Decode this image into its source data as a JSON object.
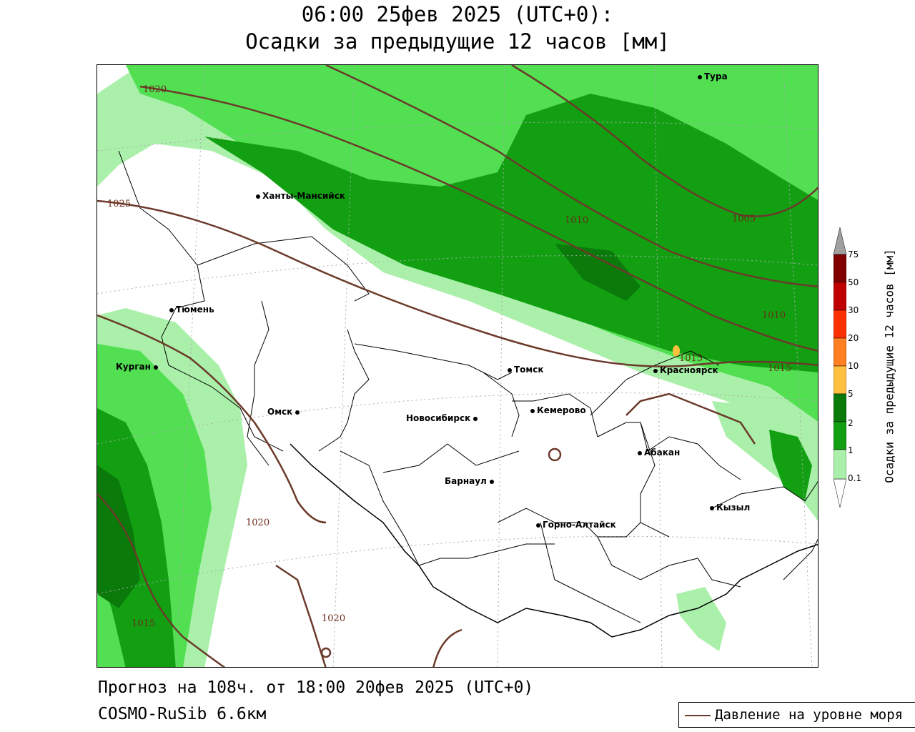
{
  "title": {
    "line1": "06:00 25фев 2025 (UTC+0):",
    "line2": "Осадки за предыдущие 12 часов [мм]"
  },
  "footer": {
    "forecast": "Прогноз на 108ч. от 18:00 20фев 2025 (UTC+0)",
    "model": "COSMO-RuSib 6.6км"
  },
  "legend": {
    "pressure_label": "Давление на уровне моря",
    "line_color": "#6b3a2a"
  },
  "colorbar": {
    "title": "Осадки за предыдущие 12 часов [мм]",
    "ticks": [
      "0.1",
      "1",
      "2",
      "5",
      "10",
      "20",
      "30",
      "50",
      "75"
    ],
    "colors": [
      "#aaf0aa",
      "#52e052",
      "#12a012",
      "#0a7a0a",
      "#ffc040",
      "#ff8020",
      "#ff3000",
      "#c00000",
      "#800000"
    ]
  },
  "cities": [
    {
      "name": "Тура"
    },
    {
      "name": "Ханты-Мансийск"
    },
    {
      "name": "Тюмень"
    },
    {
      "name": "Курган"
    },
    {
      "name": "Омск"
    },
    {
      "name": "Новосибирск"
    },
    {
      "name": "Томск"
    },
    {
      "name": "Кемерово"
    },
    {
      "name": "Красноярск"
    },
    {
      "name": "Абакан"
    },
    {
      "name": "Барнаул"
    },
    {
      "name": "Горно-Алтайск"
    },
    {
      "name": "Кызыл"
    }
  ],
  "isobars": [
    "1020",
    "1025",
    "1010",
    "1005",
    "1010",
    "1015",
    "1015",
    "1020",
    "1020",
    "1015"
  ]
}
